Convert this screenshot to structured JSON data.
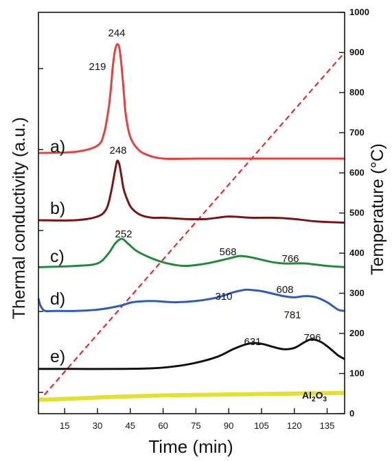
{
  "chart_data": {
    "type": "line",
    "xlabel": "Time (min)",
    "ylabel_left": "Thermal conductivity (a.u.)",
    "ylabel_right": "Temperature (°C)",
    "xlim": [
      3,
      143
    ],
    "xticks": [
      15,
      30,
      45,
      60,
      75,
      90,
      105,
      120,
      135
    ],
    "ylim_right": [
      0,
      1000
    ],
    "yticks_right": [
      0,
      100,
      200,
      300,
      400,
      500,
      600,
      700,
      800,
      900,
      1000
    ],
    "left_axis_values_shown": false,
    "series": [
      {
        "label": "a)",
        "color": "#e8403a",
        "x": [
          3,
          20,
          30,
          33,
          35,
          36,
          37,
          38,
          39,
          40,
          41,
          42,
          43,
          45,
          48,
          52,
          60,
          75,
          100,
          120,
          143
        ],
        "y": [
          1.0,
          1.1,
          1.6,
          2.6,
          4.5,
          6.0,
          8.0,
          9.3,
          9.8,
          9.5,
          8.0,
          6.0,
          4.0,
          2.3,
          1.4,
          0.9,
          0.55,
          0.55,
          0.55,
          0.55,
          0.55
        ]
      },
      {
        "label": "b)",
        "color": "#7a1414",
        "x": [
          3,
          20,
          30,
          34,
          36,
          38,
          39,
          40,
          41,
          42,
          44,
          46,
          50,
          55,
          60,
          70,
          80,
          90,
          100,
          110,
          120,
          130,
          143
        ],
        "y": [
          0.5,
          0.5,
          0.8,
          1.4,
          2.6,
          4.5,
          5.3,
          5.0,
          4.0,
          3.0,
          2.0,
          1.4,
          0.9,
          0.7,
          0.7,
          0.6,
          0.6,
          0.8,
          0.7,
          0.7,
          0.6,
          0.4,
          0.3
        ]
      },
      {
        "label": "c)",
        "color": "#1f8a3a",
        "x": [
          3,
          20,
          30,
          35,
          38,
          41,
          44,
          48,
          55,
          62,
          70,
          80,
          90,
          95,
          100,
          105,
          110,
          115,
          120,
          125,
          130,
          135,
          143
        ],
        "y": [
          0.7,
          0.8,
          1.0,
          1.8,
          2.6,
          3.0,
          2.6,
          2.0,
          1.4,
          1.0,
          0.8,
          1.0,
          1.4,
          1.6,
          1.5,
          1.3,
          1.1,
          1.0,
          1.0,
          1.0,
          0.9,
          0.8,
          0.7
        ]
      },
      {
        "label": "d)",
        "color": "#2d5bbd",
        "x": [
          3,
          4,
          6,
          10,
          20,
          30,
          40,
          46,
          55,
          65,
          75,
          85,
          92,
          97,
          100,
          105,
          110,
          115,
          120,
          125,
          130,
          135,
          140,
          143
        ],
        "y": [
          1.6,
          1.0,
          0.6,
          0.6,
          0.6,
          0.7,
          1.0,
          1.3,
          1.4,
          1.3,
          1.4,
          1.7,
          2.1,
          2.3,
          2.3,
          2.2,
          2.0,
          1.8,
          1.7,
          1.8,
          1.7,
          1.3,
          0.7,
          0.6
        ]
      },
      {
        "label": "e)",
        "color": "#111111",
        "x": [
          3,
          20,
          40,
          55,
          65,
          75,
          85,
          92,
          98,
          102,
          106,
          110,
          115,
          120,
          125,
          128,
          132,
          136,
          140,
          143
        ],
        "y": [
          0.4,
          0.4,
          0.4,
          0.45,
          0.6,
          0.9,
          1.4,
          2.0,
          2.4,
          2.5,
          2.4,
          2.2,
          2.0,
          2.1,
          2.6,
          2.8,
          2.6,
          2.1,
          1.5,
          1.2
        ]
      },
      {
        "label": "Al2O3",
        "color": "#e4e030",
        "x": [
          3,
          20,
          40,
          60,
          80,
          100,
          120,
          143
        ],
        "y": [
          0.35,
          0.45,
          0.6,
          0.7,
          0.75,
          0.8,
          0.85,
          0.9
        ]
      }
    ],
    "temperature_line": {
      "color": "#e32b2b",
      "style": "dashed",
      "x": [
        3,
        143
      ],
      "y": [
        30,
        900
      ]
    },
    "peak_annotations": [
      {
        "series": "a)",
        "text": "244"
      },
      {
        "series": "a)",
        "text": "219"
      },
      {
        "series": "b)",
        "text": "248"
      },
      {
        "series": "c)",
        "text": "252"
      },
      {
        "series": "c)",
        "text": "568"
      },
      {
        "series": "c)",
        "text": "766"
      },
      {
        "series": "d)",
        "text": "310"
      },
      {
        "series": "d)",
        "text": "608"
      },
      {
        "series": "d)",
        "text": "781"
      },
      {
        "series": "e)",
        "text": "631"
      },
      {
        "series": "e)",
        "text": "796"
      }
    ]
  }
}
